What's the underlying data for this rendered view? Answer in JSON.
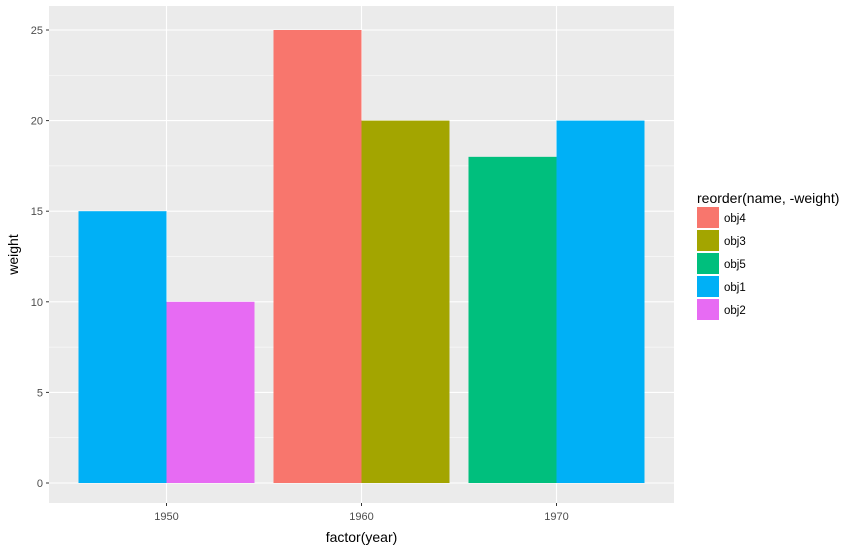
{
  "chart_data": {
    "type": "bar",
    "xlabel": "factor(year)",
    "ylabel": "weight",
    "categories": [
      "1950",
      "1960",
      "1970"
    ],
    "ylim": [
      0,
      25
    ],
    "yticks": [
      0,
      5,
      10,
      15,
      20,
      25
    ],
    "grid": true,
    "legend": {
      "title": "reorder(name, -weight)",
      "position": "right",
      "entries": [
        {
          "label": "obj4",
          "color": "#F8766D"
        },
        {
          "label": "obj3",
          "color": "#A3A500"
        },
        {
          "label": "obj5",
          "color": "#00BF7D"
        },
        {
          "label": "obj1",
          "color": "#00B0F6"
        },
        {
          "label": "obj2",
          "color": "#E76BF3"
        }
      ]
    },
    "groups": [
      {
        "category": "1950",
        "bars": [
          {
            "name": "obj1",
            "value": 15,
            "color": "#00B0F6"
          },
          {
            "name": "obj2",
            "value": 10,
            "color": "#E76BF3"
          }
        ]
      },
      {
        "category": "1960",
        "bars": [
          {
            "name": "obj4",
            "value": 25,
            "color": "#F8766D"
          },
          {
            "name": "obj3",
            "value": 20,
            "color": "#A3A500"
          }
        ]
      },
      {
        "category": "1970",
        "bars": [
          {
            "name": "obj5",
            "value": 18,
            "color": "#00BF7D"
          },
          {
            "name": "obj1",
            "value": 20,
            "color": "#00B0F6"
          }
        ]
      }
    ]
  }
}
